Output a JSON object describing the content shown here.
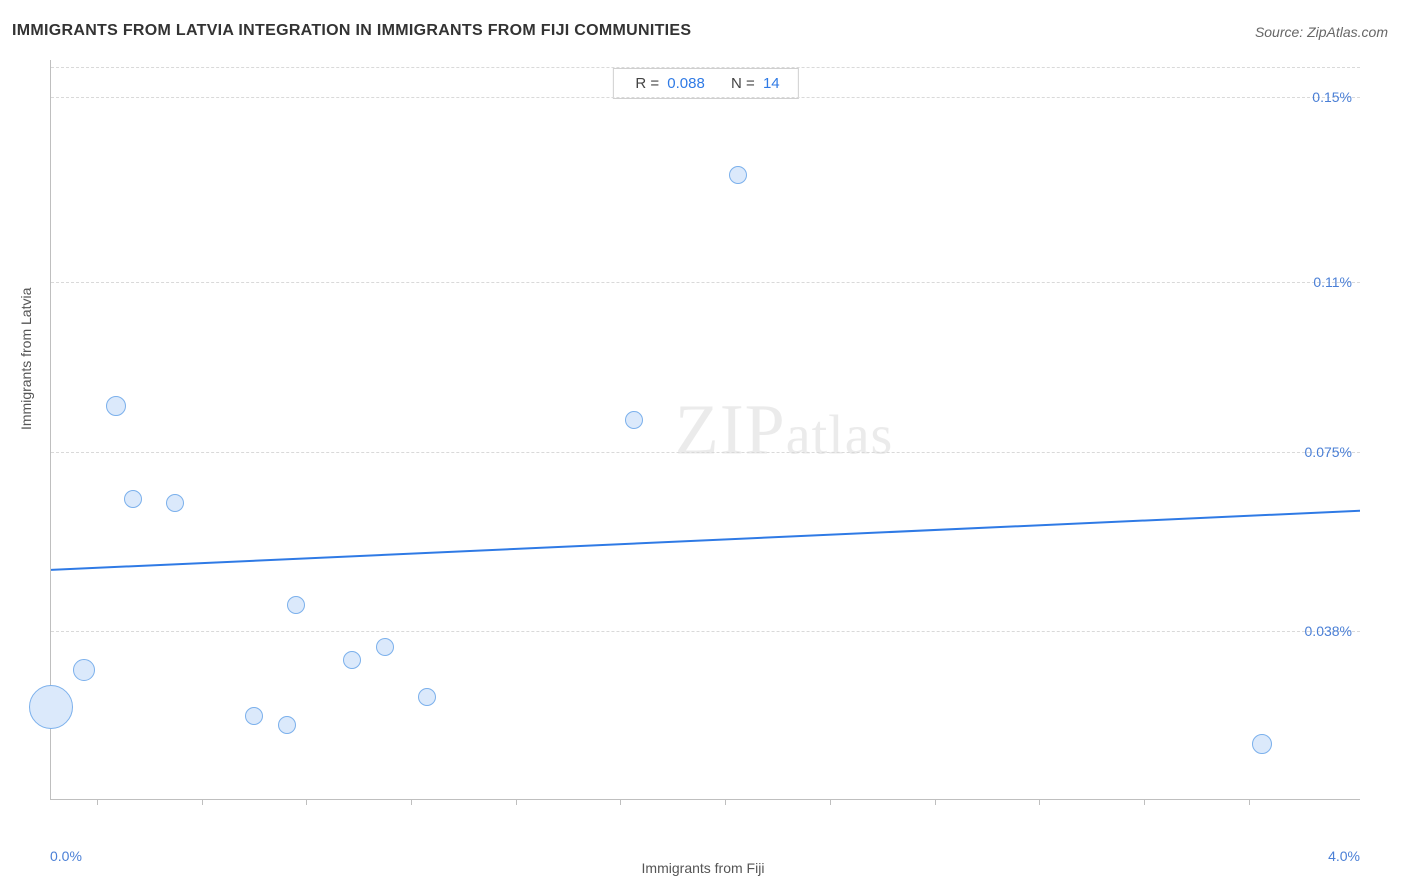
{
  "title": "IMMIGRANTS FROM LATVIA INTEGRATION IN IMMIGRANTS FROM FIJI COMMUNITIES",
  "source": {
    "label": "Source: ",
    "value": "ZipAtlas.com"
  },
  "watermark": {
    "primary": "ZIP",
    "secondary": "atlas"
  },
  "stats": {
    "r_label": "R =",
    "r_value": "0.088",
    "n_label": "N =",
    "n_value": "14"
  },
  "chart": {
    "type": "scatter",
    "x_axis": {
      "label": "Immigrants from Fiji",
      "min": 0.0,
      "max": 4.0,
      "tick_label_min": "0.0%",
      "tick_label_max": "4.0%",
      "tick_positions_pct": [
        3.5,
        11.5,
        19.5,
        27.5,
        35.5,
        43.5,
        51.5,
        59.5,
        67.5,
        75.5,
        83.5,
        91.5
      ]
    },
    "y_axis": {
      "label": "Immigrants from Latvia",
      "min": 0.0,
      "max": 0.16,
      "gridlines": [
        {
          "value": 0.15,
          "label": "0.15%",
          "pos_pct": 5.0
        },
        {
          "value": 0.11,
          "label": "0.11%",
          "pos_pct": 30.0
        },
        {
          "value": 0.075,
          "label": "0.075%",
          "pos_pct": 53.0
        },
        {
          "value": 0.038,
          "label": "0.038%",
          "pos_pct": 77.2
        }
      ],
      "top_dashed_pos_pct": 1.0
    },
    "bubble_fill": "#dbe9fb",
    "bubble_stroke": "#7bb0ec",
    "background_color": "#ffffff",
    "grid_color": "#d9d9d9",
    "axis_color": "#bfbfbf",
    "label_color": "#555555",
    "tick_label_color": "#4a7fd6",
    "trend_line": {
      "color": "#2f7ae5",
      "width": 2,
      "y1_pct": 69.0,
      "y2_pct": 61.0
    },
    "points": [
      {
        "x": 0.0,
        "y": 0.02,
        "r": 22
      },
      {
        "x": 0.1,
        "y": 0.028,
        "r": 11
      },
      {
        "x": 0.2,
        "y": 0.085,
        "r": 10
      },
      {
        "x": 0.25,
        "y": 0.065,
        "r": 9
      },
      {
        "x": 0.38,
        "y": 0.064,
        "r": 9
      },
      {
        "x": 0.62,
        "y": 0.018,
        "r": 9
      },
      {
        "x": 0.72,
        "y": 0.016,
        "r": 9
      },
      {
        "x": 0.75,
        "y": 0.042,
        "r": 9
      },
      {
        "x": 0.92,
        "y": 0.03,
        "r": 9
      },
      {
        "x": 1.02,
        "y": 0.033,
        "r": 9
      },
      {
        "x": 1.15,
        "y": 0.022,
        "r": 9
      },
      {
        "x": 1.78,
        "y": 0.082,
        "r": 9
      },
      {
        "x": 2.1,
        "y": 0.135,
        "r": 9
      },
      {
        "x": 3.7,
        "y": 0.012,
        "r": 10
      }
    ]
  }
}
